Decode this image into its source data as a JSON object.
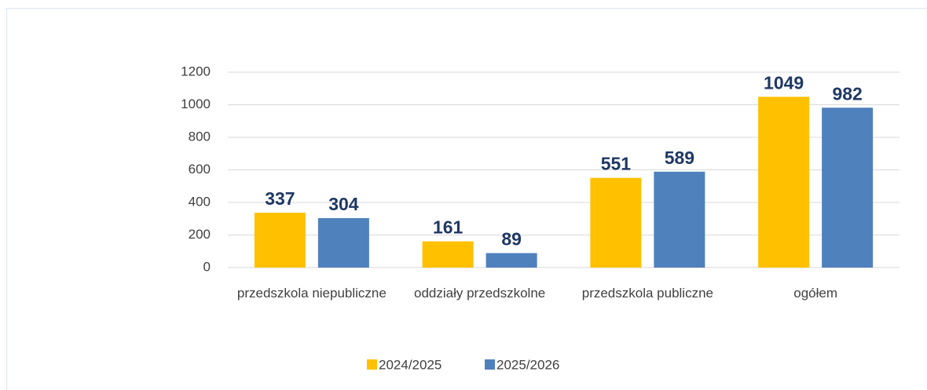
{
  "chart_data": {
    "type": "bar",
    "categories": [
      "przedszkola niepubliczne",
      "oddziały przedszkolne",
      "przedszkola publiczne",
      "ogółem"
    ],
    "series": [
      {
        "name": "2024/2025",
        "color": "#ffc000",
        "values": [
          337,
          161,
          551,
          1049
        ]
      },
      {
        "name": "2025/2026",
        "color": "#4f81bd",
        "values": [
          304,
          89,
          589,
          982
        ]
      }
    ],
    "ylim": [
      0,
      1200
    ],
    "yticks": [
      0,
      200,
      400,
      600,
      800,
      1000,
      1200
    ],
    "grid": true,
    "legend": "bottom"
  }
}
